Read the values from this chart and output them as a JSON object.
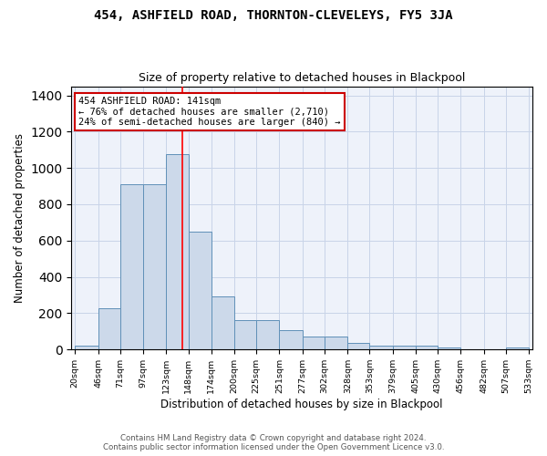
{
  "title": "454, ASHFIELD ROAD, THORNTON-CLEVELEYS, FY5 3JA",
  "subtitle": "Size of property relative to detached houses in Blackpool",
  "xlabel": "Distribution of detached houses by size in Blackpool",
  "ylabel": "Number of detached properties",
  "bar_color": "#ccd9ea",
  "bar_edge_color": "#6090b8",
  "grid_color": "#c8d4e8",
  "plot_bg_color": "#eef2fa",
  "property_line_x": 141,
  "bin_edges": [
    20,
    46,
    71,
    97,
    123,
    148,
    174,
    200,
    225,
    251,
    277,
    302,
    328,
    353,
    379,
    405,
    430,
    456,
    482,
    507,
    533
  ],
  "bin_labels": [
    "20sqm",
    "46sqm",
    "71sqm",
    "97sqm",
    "123sqm",
    "148sqm",
    "174sqm",
    "200sqm",
    "225sqm",
    "251sqm",
    "277sqm",
    "302sqm",
    "328sqm",
    "353sqm",
    "379sqm",
    "405sqm",
    "430sqm",
    "456sqm",
    "482sqm",
    "507sqm",
    "533sqm"
  ],
  "bar_heights": [
    20,
    225,
    910,
    910,
    1075,
    650,
    290,
    160,
    160,
    105,
    70,
    70,
    38,
    22,
    22,
    20,
    13,
    0,
    0,
    13,
    0
  ],
  "ylim": [
    0,
    1450
  ],
  "yticks": [
    0,
    200,
    400,
    600,
    800,
    1000,
    1200,
    1400
  ],
  "annotation_title": "454 ASHFIELD ROAD: 141sqm",
  "annotation_line1": "← 76% of detached houses are smaller (2,710)",
  "annotation_line2": "24% of semi-detached houses are larger (840) →",
  "annotation_box_color": "#ffffff",
  "annotation_border_color": "#cc0000",
  "footer_line1": "Contains HM Land Registry data © Crown copyright and database right 2024.",
  "footer_line2": "Contains public sector information licensed under the Open Government Licence v3.0."
}
